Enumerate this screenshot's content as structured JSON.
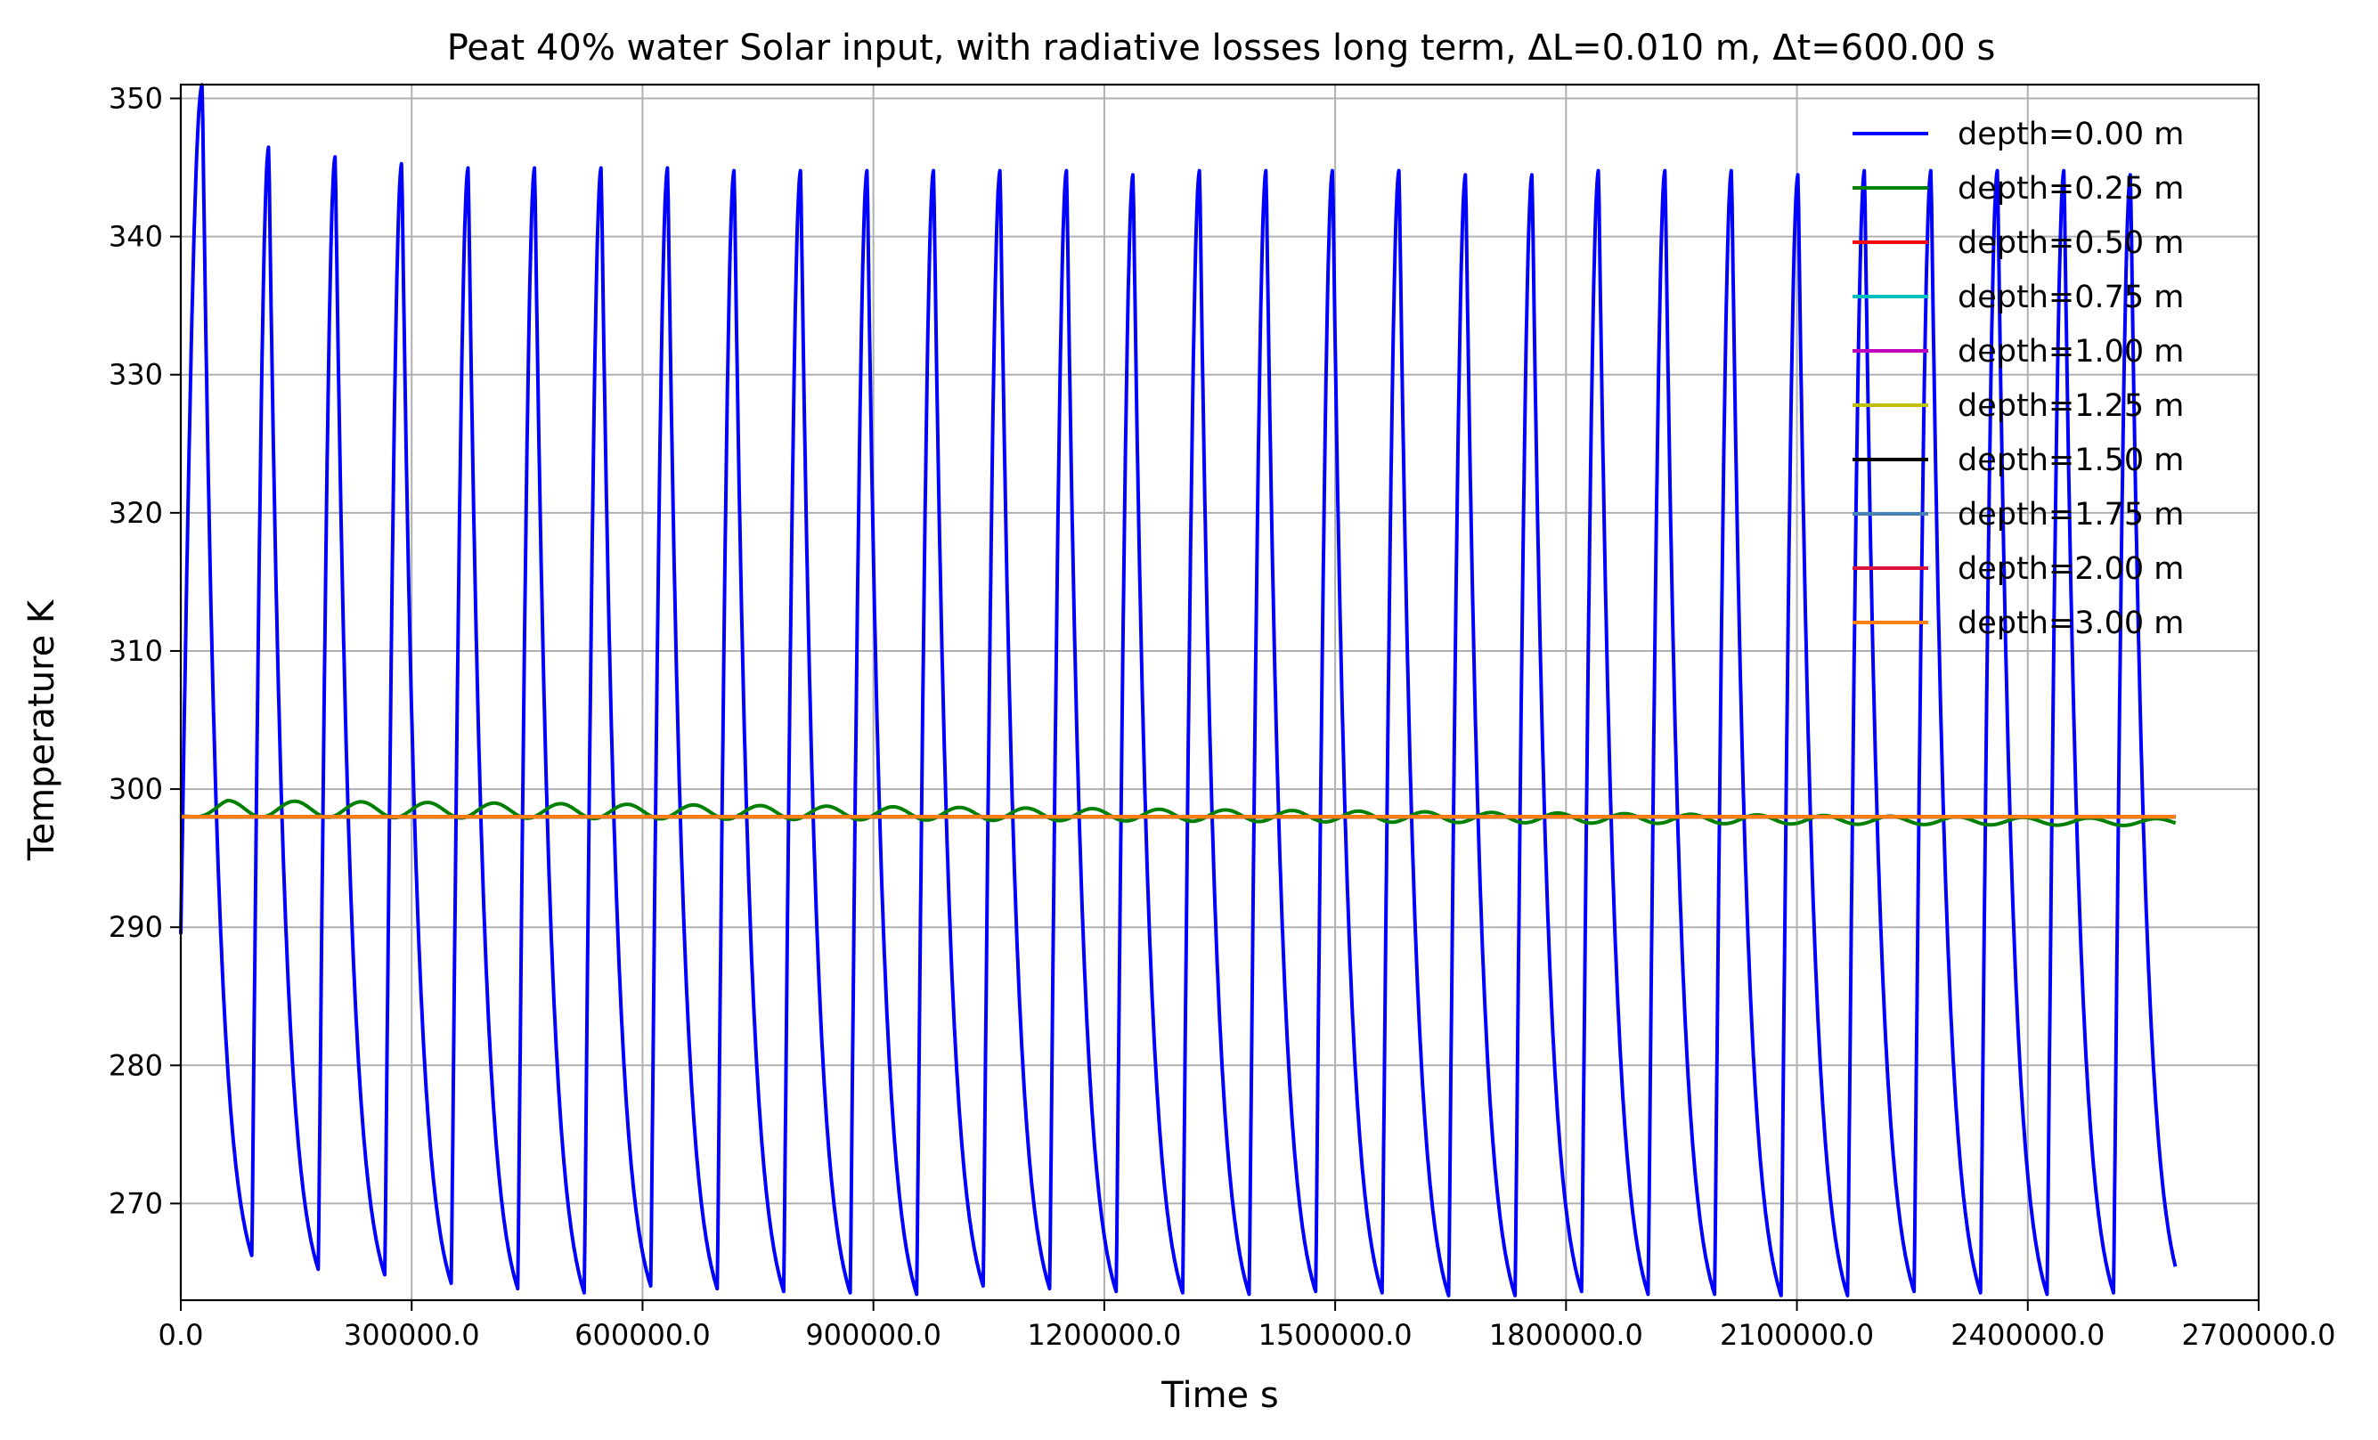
{
  "chart_data": {
    "type": "line",
    "title": "Peat 40% water Solar input, with radiative losses long term,  ΔL=0.010 m, Δt=600.00 s",
    "xlabel": "Time s",
    "ylabel": "Temperature K",
    "xlim": [
      0,
      2700000
    ],
    "ylim": [
      263,
      351
    ],
    "xticks": [
      0,
      300000,
      600000,
      900000,
      1200000,
      1500000,
      1800000,
      2100000,
      2400000,
      2700000
    ],
    "xtick_labels": [
      "0.0",
      "300000.0",
      "600000.0",
      "900000.0",
      "1200000.0",
      "1500000.0",
      "1800000.0",
      "2100000.0",
      "2400000.0",
      "2700000.0"
    ],
    "yticks": [
      270,
      280,
      290,
      300,
      310,
      320,
      330,
      340,
      350
    ],
    "ytick_labels": [
      "270",
      "280",
      "290",
      "300",
      "310",
      "320",
      "330",
      "340",
      "350"
    ],
    "grid": true,
    "legend_position": "top-right",
    "series": [
      {
        "name": "depth=0.00 m",
        "color": "#0000ff",
        "model": "surface",
        "t_end": 2592000,
        "period": 86400,
        "start_value": 289.5,
        "peak_time_in_day": 28000,
        "peaks": [
          351,
          346.5,
          345.8,
          345.3,
          345,
          345,
          345,
          345,
          344.8,
          344.8,
          344.8,
          344.8,
          344.8,
          344.8,
          344.5,
          344.8,
          344.8,
          344.8,
          344.8,
          344.5,
          344.5,
          344.8,
          344.8,
          344.8,
          344.5,
          344.8,
          344.8,
          344.8,
          344.8,
          344.5
        ],
        "minima": [
          266.2,
          265.2,
          264.8,
          264.2,
          263.8,
          263.5,
          264.0,
          263.8,
          263.6,
          263.5,
          263.4,
          264.0,
          263.8,
          263.6,
          263.5,
          263.4,
          263.6,
          263.5,
          263.3,
          263.3,
          263.6,
          263.4,
          263.4,
          263.3,
          263.3,
          263.6,
          263.5,
          263.4,
          263.5,
          264.2
        ]
      },
      {
        "name": "depth=0.25 m",
        "color": "#008000",
        "model": "damped",
        "t_end": 2592000,
        "period": 86400,
        "base_start": 298.6,
        "base_end": 297.6,
        "amp_start": 0.6,
        "amp_end": 0.25,
        "start_value": 298.0
      },
      {
        "name": "depth=0.50 m",
        "color": "#ff0000",
        "model": "flat",
        "t_end": 2592000,
        "value": 298.0
      },
      {
        "name": "depth=0.75 m",
        "color": "#00bfbf",
        "model": "flat",
        "t_end": 2592000,
        "value": 298.0
      },
      {
        "name": "depth=1.00 m",
        "color": "#bf00bf",
        "model": "flat",
        "t_end": 2592000,
        "value": 298.0
      },
      {
        "name": "depth=1.25 m",
        "color": "#bfbf00",
        "model": "flat",
        "t_end": 2592000,
        "value": 298.0
      },
      {
        "name": "depth=1.50 m",
        "color": "#000000",
        "model": "flat",
        "t_end": 2592000,
        "value": 298.0
      },
      {
        "name": "depth=1.75 m",
        "color": "#4682b4",
        "model": "flat",
        "t_end": 2592000,
        "value": 298.0
      },
      {
        "name": "depth=2.00 m",
        "color": "#dc143c",
        "model": "flat",
        "t_end": 2592000,
        "value": 298.0
      },
      {
        "name": "depth=3.00 m",
        "color": "#ff7f0e",
        "model": "flat",
        "t_end": 2592000,
        "value": 298.0
      }
    ]
  }
}
